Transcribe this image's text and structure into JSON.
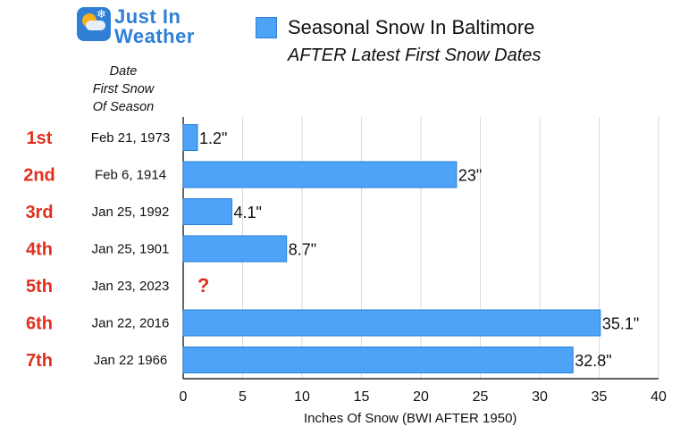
{
  "logo": {
    "line1": "Just In",
    "line2": "Weather",
    "icon": "sun-cloud-snowflake-icon",
    "flake_glyph": "❄"
  },
  "header": {
    "column_header": [
      "Date",
      "First Snow",
      "Of Season"
    ]
  },
  "chart_data": {
    "type": "bar",
    "orientation": "horizontal",
    "title": "Seasonal Snow In Baltimore",
    "subtitle": "AFTER Latest First Snow Dates",
    "xlabel": "Inches Of Snow (BWI AFTER 1950)",
    "ylabel": "",
    "xlim": [
      0,
      40
    ],
    "xticks": [
      0,
      5,
      10,
      15,
      20,
      25,
      30,
      35,
      40
    ],
    "grid": true,
    "legend_position": "top",
    "colors": {
      "bar_fill": "#4da3f7",
      "bar_stroke": "#2a7fd4",
      "rank": "#e0301e",
      "unknown_marker": "#e0301e",
      "grid": "#d9d9d9",
      "axis": "#000000"
    },
    "rows": [
      {
        "rank": "1st",
        "date": "Feb 21, 1973",
        "value": 1.2,
        "label": "1.2\""
      },
      {
        "rank": "2nd",
        "date": "Feb 6, 1914",
        "value": 23,
        "label": "23\""
      },
      {
        "rank": "3rd",
        "date": "Jan 25, 1992",
        "value": 4.1,
        "label": "4.1\""
      },
      {
        "rank": "4th",
        "date": "Jan 25, 1901",
        "value": 8.7,
        "label": "8.7\""
      },
      {
        "rank": "5th",
        "date": "Jan 23, 2023",
        "value": null,
        "label": "?"
      },
      {
        "rank": "6th",
        "date": "Jan 22, 2016",
        "value": 35.1,
        "label": "35.1\""
      },
      {
        "rank": "7th",
        "date": "Jan 22 1966",
        "value": 32.8,
        "label": "32.8\""
      }
    ]
  }
}
